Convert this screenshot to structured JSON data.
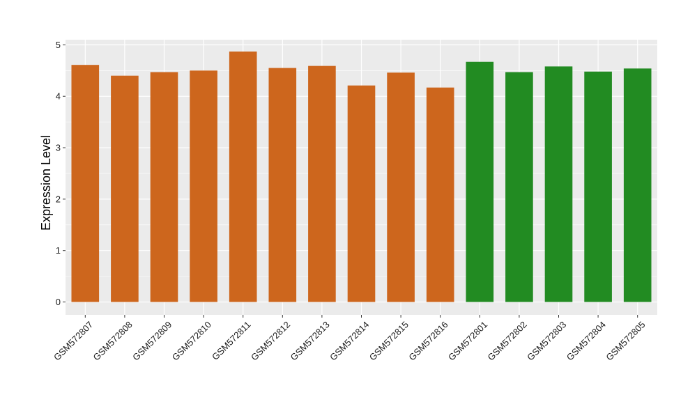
{
  "chart_data": {
    "type": "bar",
    "title": "",
    "xlabel": "",
    "ylabel": "Expression Level",
    "ylim": [
      -0.25,
      5.1
    ],
    "yticks": [
      0,
      1,
      2,
      3,
      4,
      5
    ],
    "grid": true,
    "legend": "none",
    "categories": [
      "GSM572807",
      "GSM572808",
      "GSM572809",
      "GSM572810",
      "GSM572811",
      "GSM572812",
      "GSM572813",
      "GSM572814",
      "GSM572815",
      "GSM572816",
      "GSM572801",
      "GSM572802",
      "GSM572803",
      "GSM572804",
      "GSM572805"
    ],
    "values": [
      4.61,
      4.4,
      4.47,
      4.5,
      4.87,
      4.55,
      4.59,
      4.21,
      4.46,
      4.17,
      4.67,
      4.47,
      4.58,
      4.48,
      4.54
    ],
    "bar_colors": [
      "#cd661d",
      "#cd661d",
      "#cd661d",
      "#cd661d",
      "#cd661d",
      "#cd661d",
      "#cd661d",
      "#cd661d",
      "#cd661d",
      "#cd661d",
      "#228b22",
      "#228b22",
      "#228b22",
      "#228b22",
      "#228b22"
    ],
    "panel_background": "#ebebeb",
    "grid_color": "#ffffff"
  }
}
